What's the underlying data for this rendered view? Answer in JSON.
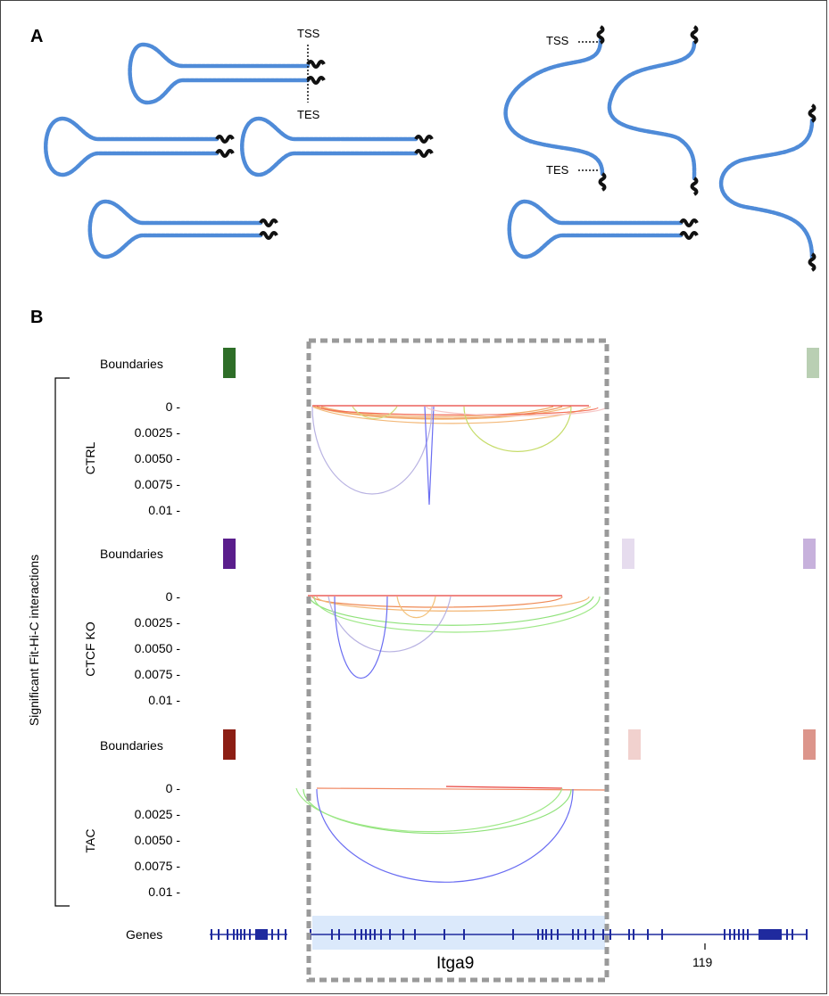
{
  "panelA": {
    "label": "A",
    "tss": "TSS",
    "tes": "TES"
  },
  "panelB": {
    "label": "B",
    "ylabel": "Significant Fit-Hi-C interactions",
    "boundaries_label": "Boundaries",
    "tracks": [
      {
        "name": "CTRL",
        "ticks": [
          "0 -",
          "0.0025 -",
          "0.0050 -",
          "0.0075 -",
          "0.01 -"
        ],
        "boundary_color": "#2e6e28",
        "boundary_faint": [
          "#b9cfb3"
        ]
      },
      {
        "name": "CTCF KO",
        "ticks": [
          "0 -",
          "0.0025 -",
          "0.0050 -",
          "0.0075 -",
          "0.01 -"
        ],
        "boundary_color": "#5a1e8c",
        "boundary_faint": [
          "#e6dcee",
          "#c7b1dc"
        ]
      },
      {
        "name": "TAC",
        "ticks": [
          "0 -",
          "0.0025 -",
          "0.0050 -",
          "0.0075 -",
          "0.01 -"
        ],
        "boundary_color": "#8c1e14",
        "boundary_faint": [
          "#f1d1ce",
          "#dc958b"
        ]
      }
    ],
    "genes_label": "Genes",
    "gene_name": "Itga9",
    "coord_label": "119"
  }
}
